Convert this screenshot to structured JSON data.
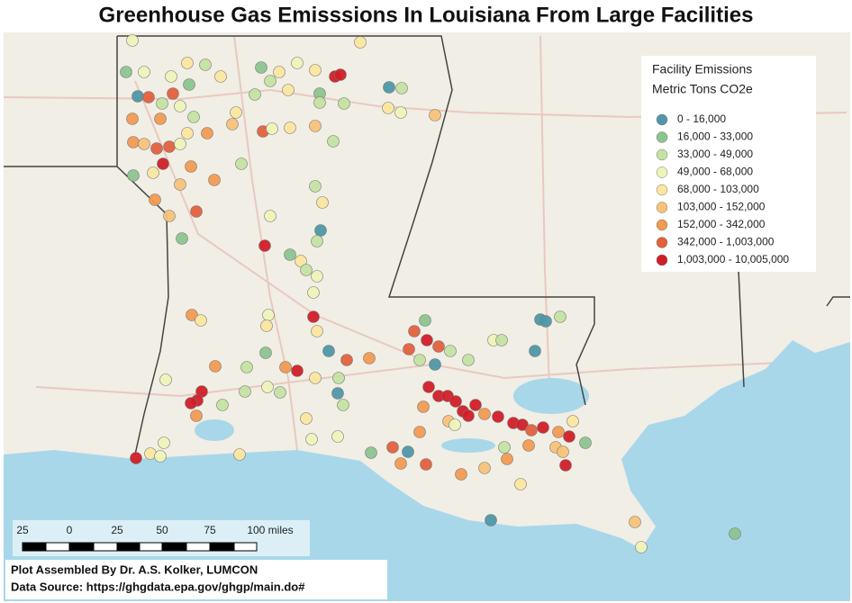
{
  "title": "Greenhouse Gas Emisssions In Louisiana From Large Facilities",
  "legend": {
    "title_lines": [
      "Facility Emissions",
      "Metric Tons CO2e"
    ],
    "items": [
      {
        "label": "0 - 16,000",
        "color": "#4e97a8"
      },
      {
        "label": "16,000 - 33,000",
        "color": "#8cc490"
      },
      {
        "label": "33,000 - 49,000",
        "color": "#c4e2a2"
      },
      {
        "label": "49,000 - 68,000",
        "color": "#eef3b9"
      },
      {
        "label": "68,000 - 103,000",
        "color": "#fbe6a0"
      },
      {
        "label": "103,000 - 152,000",
        "color": "#f7c27a"
      },
      {
        "label": "152,000 - 342,000",
        "color": "#f09a52"
      },
      {
        "label": "342,000 - 1,003,000",
        "color": "#e2603e"
      },
      {
        "label": "1,003,000 - 10,005,000",
        "color": "#d01e28"
      }
    ]
  },
  "scale": {
    "labels": [
      "25",
      "0",
      "25",
      "50",
      "75",
      "100 miles"
    ]
  },
  "credits": [
    "Plot Assembled By Dr. A.S. Kolker, LUMCON",
    "Data Source: https://ghgdata.epa.gov/ghgp/main.do#"
  ]
}
